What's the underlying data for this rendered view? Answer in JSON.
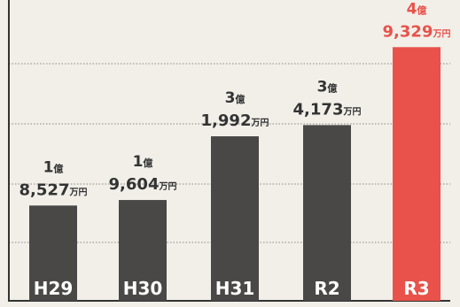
{
  "chart_data": {
    "type": "bar",
    "categories": [
      "H29",
      "H30",
      "H31",
      "R2",
      "R3"
    ],
    "values": [
      185270000,
      196040000,
      319920000,
      341730000,
      493290000
    ],
    "value_labels": [
      {
        "oku": "1",
        "oku_unit": "億",
        "man": "8,527",
        "man_unit": "万円"
      },
      {
        "oku": "1",
        "oku_unit": "億",
        "man": "9,604",
        "man_unit": "万円"
      },
      {
        "oku": "3",
        "oku_unit": "億",
        "man": "1,992",
        "man_unit": "万円"
      },
      {
        "oku": "3",
        "oku_unit": "億",
        "man": "4,173",
        "man_unit": "万円"
      },
      {
        "oku": "4",
        "oku_unit": "億",
        "man": "9,329",
        "man_unit": "万円"
      }
    ],
    "ylim": [
      0,
      550000000
    ],
    "grid": true,
    "highlight_index": 4
  },
  "colors": {
    "background": "#f2efe9",
    "bar": "#4a4846",
    "highlight": "#e8524a",
    "text": "#333333",
    "category_text": "#ffffff",
    "grid": "#8a8782",
    "axis": "#333333"
  }
}
